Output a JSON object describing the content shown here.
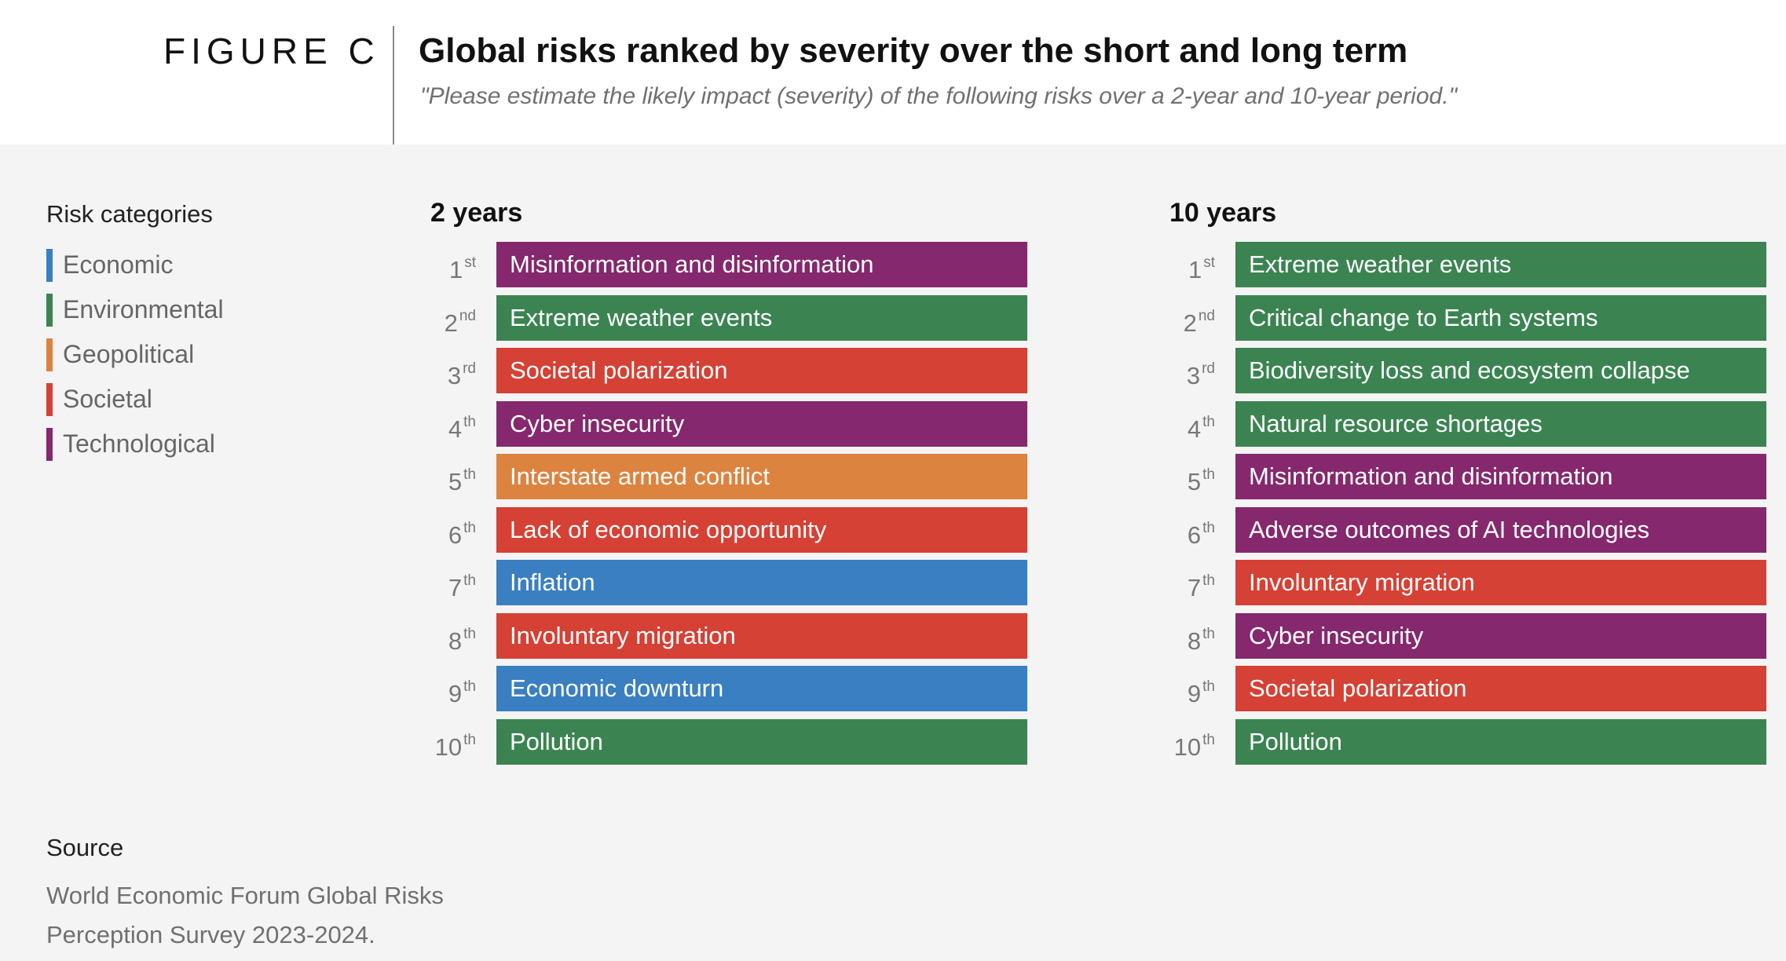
{
  "header": {
    "figure_label": "FIGURE C",
    "title": "Global risks ranked by severity over the short and long term",
    "subtitle": "\"Please estimate the likely impact (severity) of the following risks over a 2-year and 10-year period.\""
  },
  "legend": {
    "title": "Risk categories",
    "items": [
      {
        "key": "economic",
        "label": "Economic",
        "color": "#3a7fc1"
      },
      {
        "key": "environmental",
        "label": "Environmental",
        "color": "#3b8452"
      },
      {
        "key": "geopolitical",
        "label": "Geopolitical",
        "color": "#dd8340"
      },
      {
        "key": "societal",
        "label": "Societal",
        "color": "#d54134"
      },
      {
        "key": "technological",
        "label": "Technological",
        "color": "#85286d"
      }
    ]
  },
  "chart_data": {
    "type": "table",
    "panels": [
      {
        "title": "2 years",
        "items": [
          {
            "rank": "1",
            "suffix": "st",
            "label": "Misinformation and disinformation",
            "category": "technological"
          },
          {
            "rank": "2",
            "suffix": "nd",
            "label": "Extreme weather events",
            "category": "environmental"
          },
          {
            "rank": "3",
            "suffix": "rd",
            "label": "Societal polarization",
            "category": "societal"
          },
          {
            "rank": "4",
            "suffix": "th",
            "label": "Cyber insecurity",
            "category": "technological"
          },
          {
            "rank": "5",
            "suffix": "th",
            "label": "Interstate armed conflict",
            "category": "geopolitical"
          },
          {
            "rank": "6",
            "suffix": "th",
            "label": "Lack of economic opportunity",
            "category": "societal"
          },
          {
            "rank": "7",
            "suffix": "th",
            "label": "Inflation",
            "category": "economic"
          },
          {
            "rank": "8",
            "suffix": "th",
            "label": "Involuntary migration",
            "category": "societal"
          },
          {
            "rank": "9",
            "suffix": "th",
            "label": "Economic downturn",
            "category": "economic"
          },
          {
            "rank": "10",
            "suffix": "th",
            "label": "Pollution",
            "category": "environmental"
          }
        ]
      },
      {
        "title": "10 years",
        "items": [
          {
            "rank": "1",
            "suffix": "st",
            "label": "Extreme weather events",
            "category": "environmental"
          },
          {
            "rank": "2",
            "suffix": "nd",
            "label": "Critical change to Earth systems",
            "category": "environmental"
          },
          {
            "rank": "3",
            "suffix": "rd",
            "label": "Biodiversity loss and ecosystem collapse",
            "category": "environmental"
          },
          {
            "rank": "4",
            "suffix": "th",
            "label": "Natural resource shortages",
            "category": "environmental"
          },
          {
            "rank": "5",
            "suffix": "th",
            "label": "Misinformation and disinformation",
            "category": "technological"
          },
          {
            "rank": "6",
            "suffix": "th",
            "label": "Adverse outcomes of AI technologies",
            "category": "technological"
          },
          {
            "rank": "7",
            "suffix": "th",
            "label": "Involuntary migration",
            "category": "societal"
          },
          {
            "rank": "8",
            "suffix": "th",
            "label": "Cyber insecurity",
            "category": "technological"
          },
          {
            "rank": "9",
            "suffix": "th",
            "label": "Societal polarization",
            "category": "societal"
          },
          {
            "rank": "10",
            "suffix": "th",
            "label": "Pollution",
            "category": "environmental"
          }
        ]
      }
    ]
  },
  "source": {
    "title": "Source",
    "text": "World Economic Forum Global Risks Perception Survey 2023-2024."
  }
}
